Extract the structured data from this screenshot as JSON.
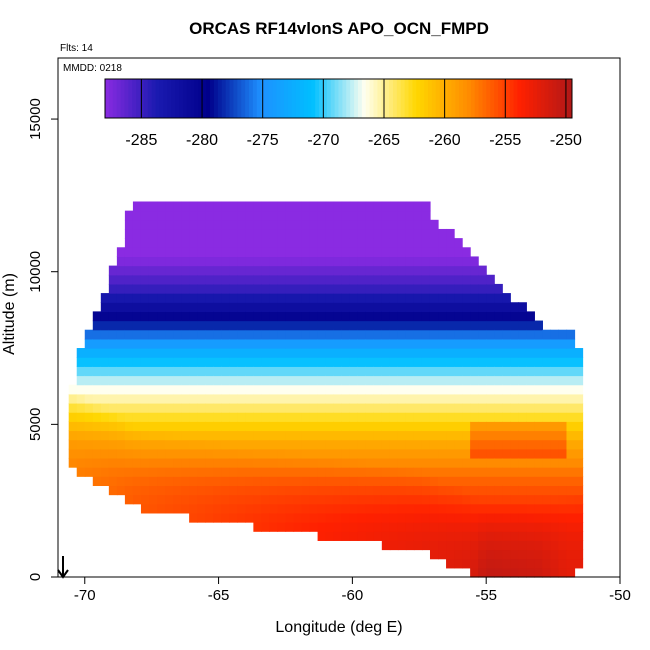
{
  "chart_data": {
    "type": "heatmap",
    "title": "ORCAS RF14vlonS APO_OCN_FMPD",
    "annotations": {
      "flights": "Flts: 14",
      "date": "MMDD: 0218"
    },
    "xlabel": "Longitude (deg E)",
    "ylabel": "Altitude (m)",
    "xlim": [
      -71,
      -50
    ],
    "ylim": [
      0,
      17000
    ],
    "xticks": [
      -70,
      -65,
      -60,
      -55,
      -50
    ],
    "yticks": [
      0,
      5000,
      10000,
      15000
    ],
    "colorbar": {
      "range": [
        -288,
        -249.5
      ],
      "ticks": [
        -285,
        -280,
        -275,
        -270,
        -265,
        -260,
        -255,
        -250
      ],
      "colors": [
        "#8a2be2",
        "#1a1ab0",
        "#00008b",
        "#1e90ff",
        "#00bfff",
        "#fffff0",
        "#ffd700",
        "#ff8c00",
        "#ff2000",
        "#b01818"
      ]
    },
    "field": {
      "description_units": "APO",
      "bottom_values_by_longitude": {
        "lon": [
          -71,
          -55.5,
          -55,
          -53,
          -52
        ],
        "value": [
          -258,
          -252,
          -250,
          -251,
          -253
        ]
      },
      "layers_by_altitude": {
        "altitude": [
          0,
          1500,
          3000,
          4500,
          5500,
          6500,
          7500,
          8500,
          9500,
          10500,
          12200
        ],
        "value": [
          -251,
          -253,
          -256,
          -260,
          -264,
          -268,
          -273,
          -280,
          -285,
          -288,
          -288
        ]
      },
      "envelope": {
        "lon": [
          -70.6,
          -70.1,
          -69.5,
          -68.7,
          -68.5,
          -67.8,
          -57.4,
          -56.8,
          -55.9,
          -55.2,
          -54.4,
          -53.6,
          -52.8,
          -51.7,
          -51.7
        ],
        "top_alt": [
          5700,
          7500,
          8700,
          10500,
          11700,
          12200,
          12200,
          11500,
          10700,
          10000,
          9200,
          8700,
          8100,
          7800,
          7300
        ],
        "bottom_alt": [
          3700,
          3500,
          3200,
          2900,
          2600,
          2300,
          1000,
          700,
          400,
          0,
          0,
          0,
          0,
          300,
          300
        ]
      }
    }
  }
}
